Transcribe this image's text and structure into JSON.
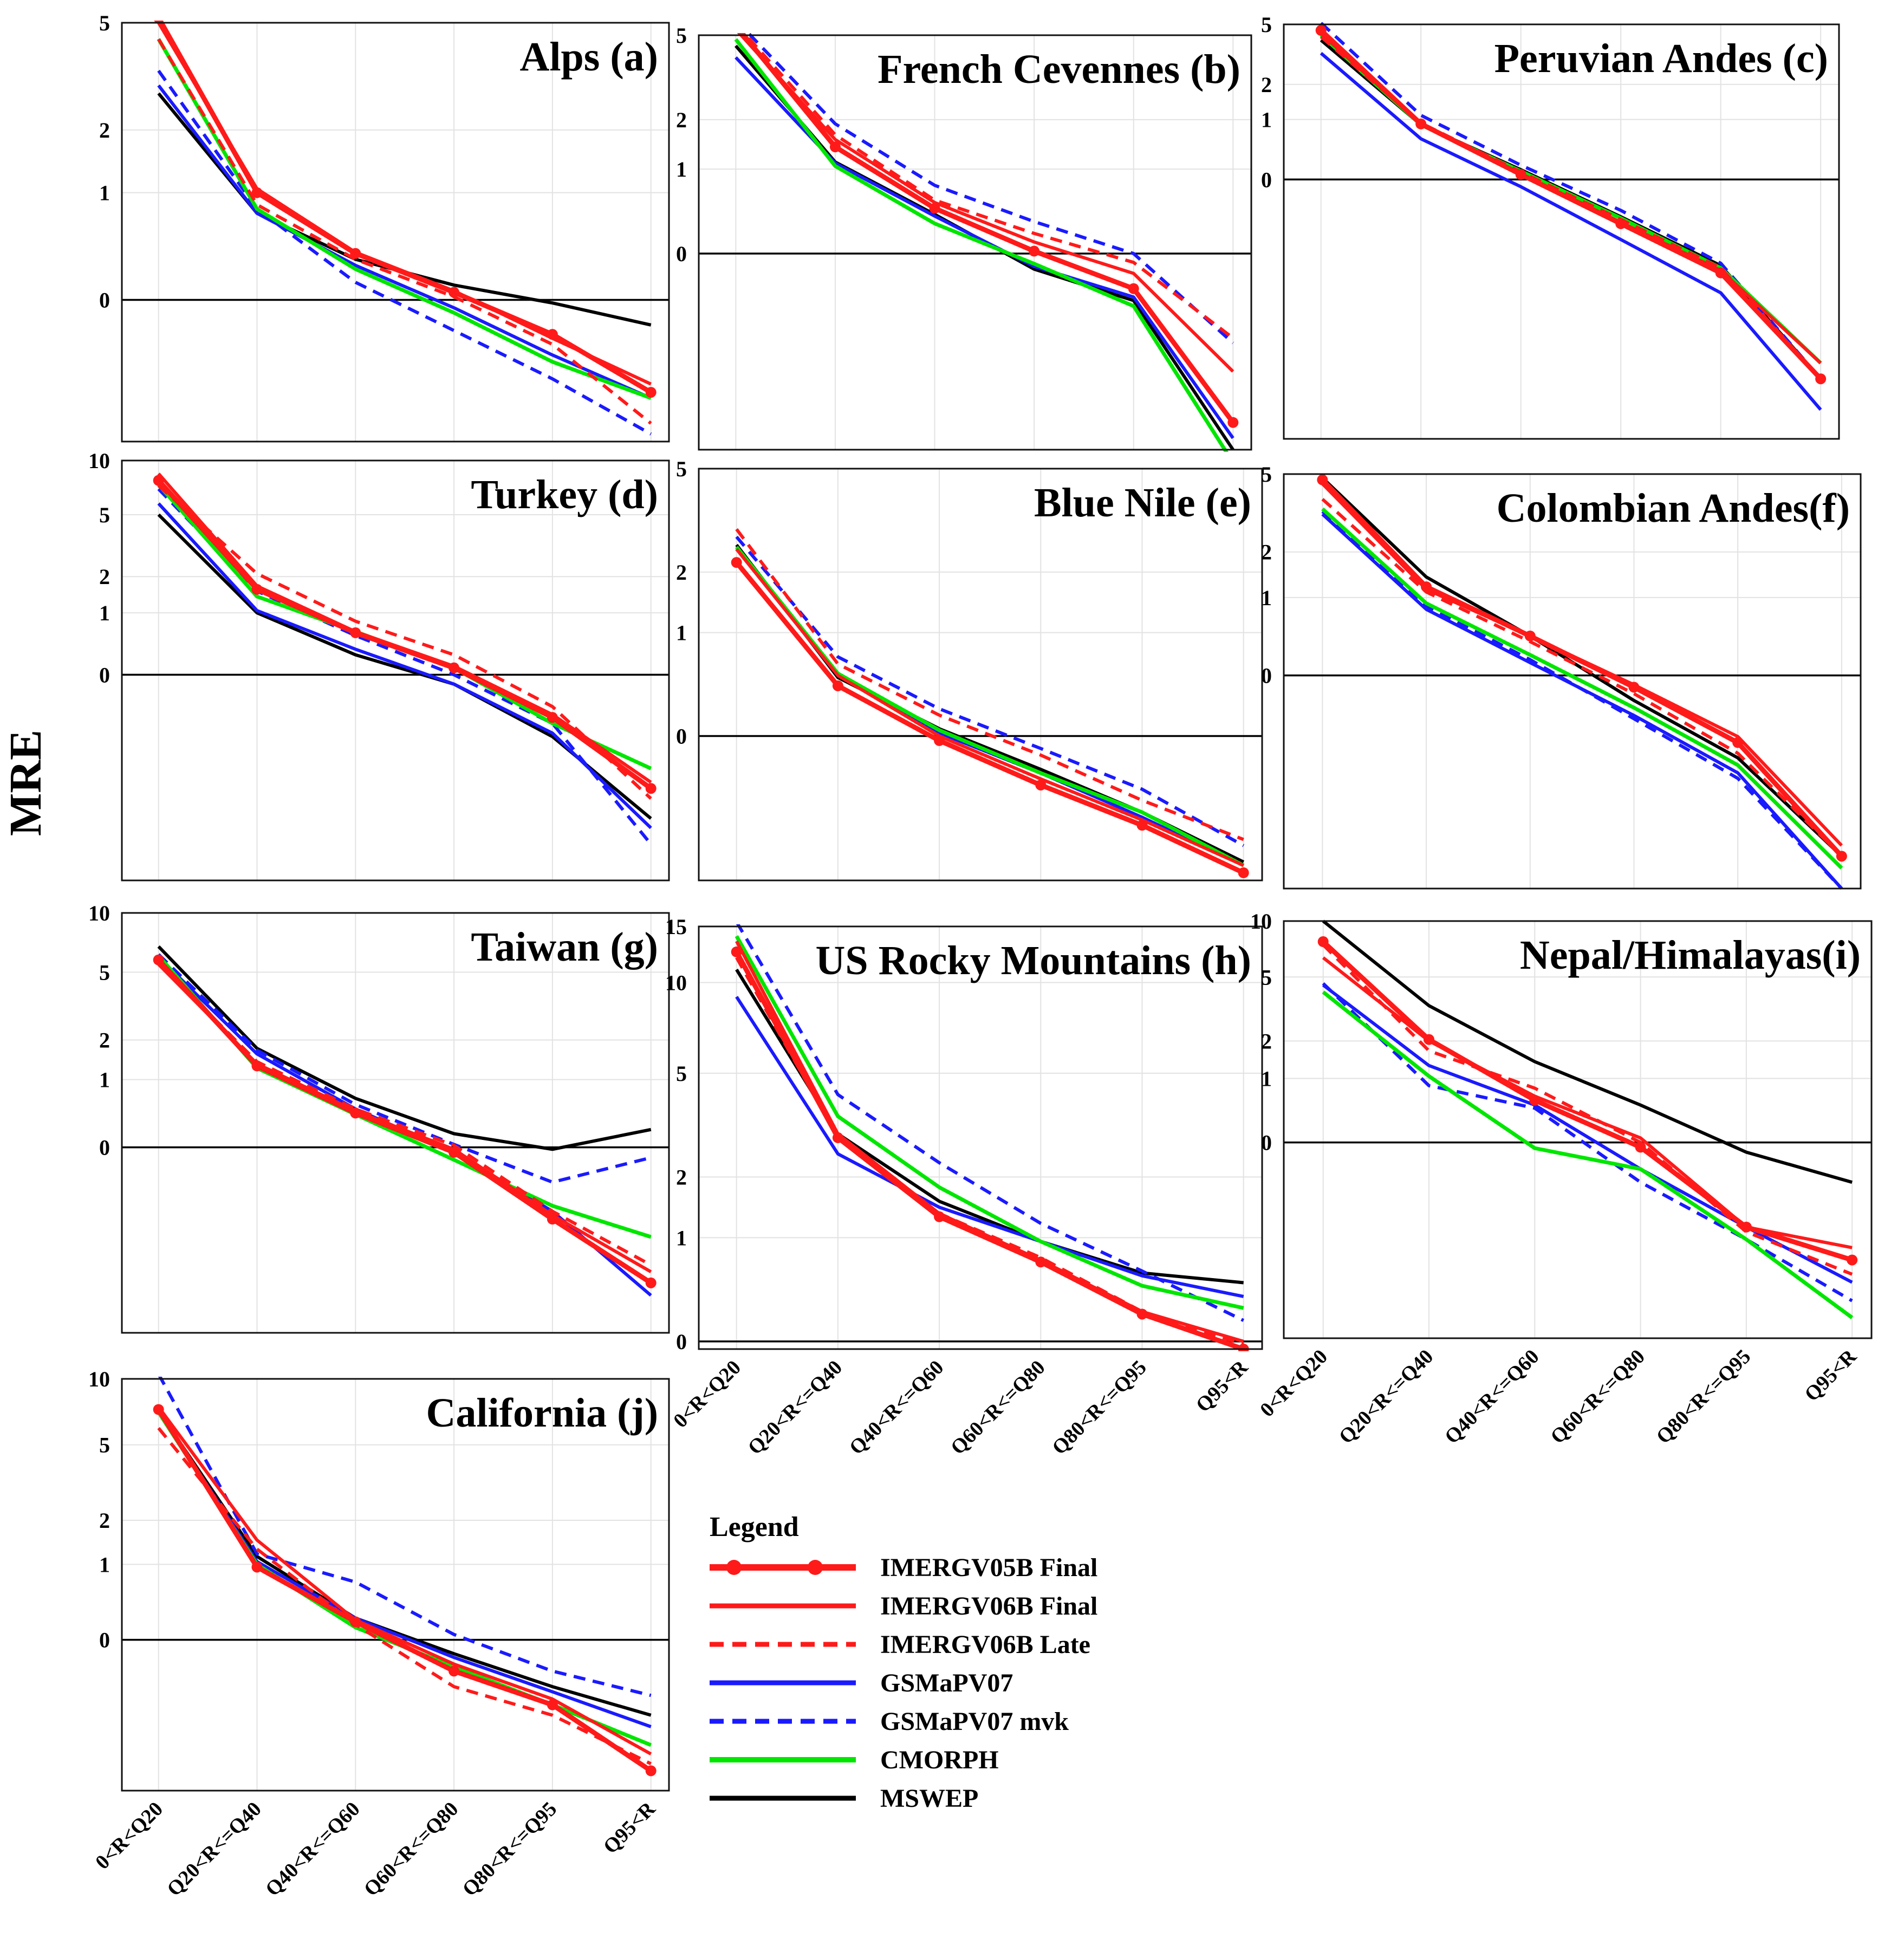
{
  "figure": {
    "ylabel": "MRE",
    "categories": [
      "0<R<Q20",
      "Q20<R<=Q40",
      "Q40<R<=Q60",
      "Q60<R<=Q80",
      "Q80<R<=Q95",
      "Q95<R"
    ]
  },
  "legend": {
    "title": "Legend",
    "items": [
      {
        "name": "IMERGV05B Final",
        "color": "#ff1a1a",
        "dash": "solid",
        "marker": true,
        "width": 9
      },
      {
        "name": "IMERGV06B Final",
        "color": "#ff1a1a",
        "dash": "solid",
        "marker": false,
        "width": 6
      },
      {
        "name": "IMERGV06B Late",
        "color": "#ff1a1a",
        "dash": "dashed",
        "marker": false,
        "width": 6
      },
      {
        "name": "GSMaPV07",
        "color": "#1a1aff",
        "dash": "solid",
        "marker": false,
        "width": 6
      },
      {
        "name": "GSMaPV07 mvk",
        "color": "#1a1aff",
        "dash": "dashed",
        "marker": false,
        "width": 6
      },
      {
        "name": "CMORPH",
        "color": "#00e600",
        "dash": "solid",
        "marker": false,
        "width": 7
      },
      {
        "name": "MSWEP",
        "color": "#000000",
        "dash": "solid",
        "marker": false,
        "width": 6
      }
    ]
  },
  "chart_data": [
    {
      "type": "line",
      "title": "Alps (a)",
      "categories": [
        "0<R<Q20",
        "Q20<R<=Q40",
        "Q40<R<=Q60",
        "Q60<R<=Q80",
        "Q80<R<=Q95",
        "Q95<R"
      ],
      "yticks": [
        5,
        2,
        1,
        0
      ],
      "yticklabels": [
        "5",
        "2",
        "1",
        "0"
      ],
      "ylim": [
        -0.6,
        5
      ],
      "series": [
        {
          "name": "IMERGV05B Final",
          "values": [
            5.2,
            1.0,
            0.35,
            0.05,
            -0.2,
            -0.45
          ]
        },
        {
          "name": "IMERGV06B Final",
          "values": [
            5.0,
            1.05,
            0.36,
            0.06,
            -0.22,
            -0.42
          ]
        },
        {
          "name": "IMERGV06B Late",
          "values": [
            4.4,
            0.85,
            0.3,
            0.02,
            -0.25,
            -0.55
          ]
        },
        {
          "name": "GSMaPV07",
          "values": [
            3.0,
            0.75,
            0.25,
            -0.05,
            -0.3,
            -0.47
          ]
        },
        {
          "name": "GSMaPV07 mvk",
          "values": [
            3.4,
            0.8,
            0.12,
            -0.18,
            -0.4,
            -0.58
          ]
        },
        {
          "name": "CMORPH",
          "values": [
            4.4,
            0.8,
            0.22,
            -0.08,
            -0.33,
            -0.47
          ]
        },
        {
          "name": "MSWEP",
          "values": [
            2.8,
            0.75,
            0.3,
            0.1,
            -0.02,
            -0.15
          ]
        }
      ]
    },
    {
      "type": "line",
      "title": "French Cevennes (b)",
      "categories": [
        "0<R<Q20",
        "Q20<R<=Q40",
        "Q40<R<=Q60",
        "Q60<R<=Q80",
        "Q80<R<=Q95",
        "Q95<R"
      ],
      "yticks": [
        5,
        2,
        1,
        0
      ],
      "yticklabels": [
        "5",
        "2",
        "1",
        "0"
      ],
      "ylim": [
        -0.8,
        5
      ],
      "series": [
        {
          "name": "IMERGV05B Final",
          "values": [
            5.5,
            1.4,
            0.45,
            0.02,
            -0.25,
            -0.75
          ]
        },
        {
          "name": "IMERGV06B Final",
          "values": [
            5.3,
            1.55,
            0.52,
            0.1,
            -0.15,
            -0.62
          ]
        },
        {
          "name": "IMERGV06B Late",
          "values": [
            5.6,
            1.65,
            0.55,
            0.18,
            -0.07,
            -0.5
          ]
        },
        {
          "name": "GSMaPV07",
          "values": [
            4.0,
            1.1,
            0.36,
            -0.1,
            -0.3,
            -0.78
          ]
        },
        {
          "name": "GSMaPV07 mvk",
          "values": [
            5.8,
            1.9,
            0.75,
            0.3,
            0.0,
            -0.52
          ]
        },
        {
          "name": "CMORPH",
          "values": [
            4.8,
            1.05,
            0.28,
            -0.08,
            -0.35,
            -0.82
          ]
        },
        {
          "name": "MSWEP",
          "values": [
            4.5,
            1.12,
            0.38,
            -0.12,
            -0.32,
            -0.8
          ]
        }
      ]
    },
    {
      "type": "line",
      "title": "Peruvian Andes  (c)",
      "categories": [
        "0<R<Q20",
        "Q20<R<=Q40",
        "Q40<R<=Q60",
        "Q60<R<=Q80",
        "Q80<R<=Q95",
        "Q95<R"
      ],
      "yticks": [
        5,
        2,
        1,
        0
      ],
      "yticklabels": [
        "5",
        "2",
        "1",
        "0"
      ],
      "ylim": [
        -0.95,
        5
      ],
      "series": [
        {
          "name": "IMERGV05B Final",
          "values": [
            4.6,
            0.9,
            0.06,
            -0.4,
            -0.66,
            -0.9
          ]
        },
        {
          "name": "IMERGV06B Final",
          "values": [
            4.4,
            0.9,
            0.07,
            -0.39,
            -0.65,
            -0.88
          ]
        },
        {
          "name": "IMERGV06B Late",
          "values": [
            4.2,
            0.92,
            0.09,
            -0.37,
            -0.64,
            -0.9
          ]
        },
        {
          "name": "GSMaPV07",
          "values": [
            3.3,
            0.6,
            -0.08,
            -0.5,
            -0.73,
            -0.93
          ]
        },
        {
          "name": "GSMaPV07 mvk",
          "values": [
            5.1,
            1.1,
            0.18,
            -0.3,
            -0.62,
            -0.9
          ]
        },
        {
          "name": "CMORPH",
          "values": [
            4.3,
            0.88,
            0.1,
            -0.36,
            -0.64,
            -0.88
          ]
        },
        {
          "name": "MSWEP",
          "values": [
            4.0,
            0.88,
            0.12,
            -0.35,
            -0.63,
            -0.9
          ]
        }
      ]
    },
    {
      "type": "line",
      "title": "Turkey (d)",
      "categories": [
        "0<R<Q20",
        "Q20<R<=Q40",
        "Q40<R<=Q60",
        "Q60<R<=Q80",
        "Q80<R<=Q95",
        "Q95<R"
      ],
      "yticks": [
        10,
        5,
        2,
        1,
        0
      ],
      "yticklabels": [
        "10",
        "5",
        "2",
        "1",
        "0"
      ],
      "ylim": [
        -0.9,
        10
      ],
      "series": [
        {
          "name": "IMERGV05B Final",
          "values": [
            7.8,
            1.6,
            0.6,
            0.08,
            -0.38,
            -0.72
          ]
        },
        {
          "name": "IMERGV06B Final",
          "values": [
            8.5,
            1.7,
            0.62,
            0.1,
            -0.36,
            -0.7
          ]
        },
        {
          "name": "IMERGV06B Late",
          "values": [
            7.3,
            2.1,
            0.82,
            0.25,
            -0.3,
            -0.75
          ]
        },
        {
          "name": "GSMaPV07",
          "values": [
            5.8,
            1.05,
            0.33,
            -0.1,
            -0.48,
            -0.82
          ]
        },
        {
          "name": "GSMaPV07 mvk",
          "values": [
            7.0,
            1.55,
            0.55,
            0.0,
            -0.42,
            -0.85
          ]
        },
        {
          "name": "CMORPH",
          "values": [
            7.4,
            1.4,
            0.62,
            0.08,
            -0.42,
            -0.65
          ]
        },
        {
          "name": "MSWEP",
          "values": [
            5.0,
            1.0,
            0.25,
            -0.1,
            -0.5,
            -0.8
          ]
        }
      ]
    },
    {
      "type": "line",
      "title": "Blue Nile (e)",
      "categories": [
        "0<R<Q20",
        "Q20<R<=Q40",
        "Q40<R<=Q60",
        "Q60<R<=Q80",
        "Q80<R<=Q95",
        "Q95<R"
      ],
      "yticks": [
        5,
        2,
        1,
        0
      ],
      "yticklabels": [
        "5",
        "2",
        "1",
        "0"
      ],
      "ylim": [
        -0.62,
        5
      ],
      "series": [
        {
          "name": "IMERGV05B Final",
          "values": [
            2.2,
            0.4,
            -0.03,
            -0.28,
            -0.45,
            -0.6
          ]
        },
        {
          "name": "IMERGV06B Final",
          "values": [
            2.5,
            0.5,
            0.0,
            -0.25,
            -0.43,
            -0.58
          ]
        },
        {
          "name": "IMERGV06B Late",
          "values": [
            3.0,
            0.62,
            0.15,
            -0.12,
            -0.35,
            -0.5
          ]
        },
        {
          "name": "GSMaPV07",
          "values": [
            2.5,
            0.5,
            0.02,
            -0.22,
            -0.42,
            -0.58
          ]
        },
        {
          "name": "GSMaPV07 mvk",
          "values": [
            2.8,
            0.7,
            0.2,
            -0.08,
            -0.3,
            -0.52
          ]
        },
        {
          "name": "CMORPH",
          "values": [
            2.55,
            0.52,
            0.04,
            -0.22,
            -0.4,
            -0.58
          ]
        },
        {
          "name": "MSWEP",
          "values": [
            2.6,
            0.48,
            0.05,
            -0.2,
            -0.4,
            -0.57
          ]
        }
      ]
    },
    {
      "type": "line",
      "title": "Colombian Andes(f)",
      "categories": [
        "0<R<Q20",
        "Q20<R<=Q40",
        "Q40<R<=Q60",
        "Q60<R<=Q80",
        "Q80<R<=Q95",
        "Q95<R"
      ],
      "yticks": [
        5,
        2,
        1,
        0
      ],
      "yticklabels": [
        "5",
        "2",
        "1",
        "0"
      ],
      "ylim": [
        -0.85,
        5
      ],
      "series": [
        {
          "name": "IMERGV05B Final",
          "values": [
            4.7,
            1.2,
            0.42,
            -0.1,
            -0.45,
            -0.8
          ]
        },
        {
          "name": "IMERGV06B Final",
          "values": [
            4.5,
            1.15,
            0.42,
            -0.08,
            -0.42,
            -0.78
          ]
        },
        {
          "name": "IMERGV06B Late",
          "values": [
            3.8,
            1.1,
            0.35,
            -0.15,
            -0.5,
            -0.8
          ]
        },
        {
          "name": "GSMaPV07",
          "values": [
            3.2,
            0.8,
            0.12,
            -0.3,
            -0.58,
            -0.85
          ]
        },
        {
          "name": "GSMaPV07 mvk",
          "values": [
            3.3,
            0.85,
            0.15,
            -0.32,
            -0.6,
            -0.85
          ]
        },
        {
          "name": "CMORPH",
          "values": [
            3.4,
            0.9,
            0.2,
            -0.25,
            -0.55,
            -0.82
          ]
        },
        {
          "name": "MSWEP",
          "values": [
            4.8,
            1.4,
            0.42,
            -0.2,
            -0.52,
            -0.8
          ]
        }
      ]
    },
    {
      "type": "line",
      "title": "Taiwan (g)",
      "categories": [
        "0<R<Q20",
        "Q20<R<=Q40",
        "Q40<R<=Q60",
        "Q60<R<=Q80",
        "Q80<R<=Q95",
        "Q95<R"
      ],
      "yticks": [
        10,
        5,
        2,
        1,
        0
      ],
      "yticklabels": [
        "10",
        "5",
        "2",
        "1",
        "0"
      ],
      "ylim": [
        -0.85,
        10
      ],
      "series": [
        {
          "name": "IMERGV05B Final",
          "values": [
            5.8,
            1.3,
            0.42,
            -0.05,
            -0.52,
            -0.75
          ]
        },
        {
          "name": "IMERGV06B Final",
          "values": [
            5.5,
            1.35,
            0.45,
            -0.02,
            -0.5,
            -0.72
          ]
        },
        {
          "name": "IMERGV06B Late",
          "values": [
            5.6,
            1.4,
            0.48,
            0.02,
            -0.48,
            -0.7
          ]
        },
        {
          "name": "GSMaPV07",
          "values": [
            6.0,
            1.6,
            0.48,
            -0.05,
            -0.48,
            -0.78
          ]
        },
        {
          "name": "GSMaPV07 mvk",
          "values": [
            6.2,
            1.7,
            0.55,
            0.03,
            -0.3,
            -0.1
          ]
        },
        {
          "name": "CMORPH",
          "values": [
            6.1,
            1.25,
            0.4,
            -0.12,
            -0.45,
            -0.6
          ]
        },
        {
          "name": "MSWEP",
          "values": [
            6.8,
            1.75,
            0.65,
            0.15,
            -0.02,
            0.2
          ]
        }
      ]
    },
    {
      "type": "line",
      "title": "US Rocky Mountains (h)",
      "categories": [
        "0<R<Q20",
        "Q20<R<=Q40",
        "Q40<R<=Q60",
        "Q60<R<=Q80",
        "Q80<R<=Q95",
        "Q95<R"
      ],
      "yticks": [
        15,
        10,
        5,
        2,
        1,
        0
      ],
      "yticklabels": [
        "15",
        "10",
        "5",
        "2",
        "1",
        "0"
      ],
      "ylim": [
        -0.05,
        15
      ],
      "series": [
        {
          "name": "IMERGV05B Final",
          "values": [
            12.5,
            2.9,
            1.3,
            0.7,
            0.2,
            -0.05
          ]
        },
        {
          "name": "IMERGV06B Final",
          "values": [
            13.5,
            3.0,
            1.35,
            0.72,
            0.22,
            0.0
          ]
        },
        {
          "name": "IMERGV06B Late",
          "values": [
            12.0,
            2.9,
            1.35,
            0.75,
            0.22,
            -0.02
          ]
        },
        {
          "name": "GSMaPV07",
          "values": [
            9.0,
            2.5,
            1.45,
            0.95,
            0.55,
            0.35
          ]
        },
        {
          "name": "GSMaPV07 mvk",
          "values": [
            15.5,
            4.2,
            2.3,
            1.2,
            0.6,
            0.15
          ]
        },
        {
          "name": "CMORPH",
          "values": [
            14.0,
            3.5,
            1.8,
            0.95,
            0.45,
            0.25
          ]
        },
        {
          "name": "MSWEP",
          "values": [
            11.0,
            3.0,
            1.55,
            0.95,
            0.58,
            0.48
          ]
        }
      ]
    },
    {
      "type": "line",
      "title": "Nepal/Himalayas(i)",
      "categories": [
        "0<R<Q20",
        "Q20<R<=Q40",
        "Q40<R<=Q60",
        "Q60<R<=Q80",
        "Q80<R<=Q95",
        "Q95<R"
      ],
      "yticks": [
        10,
        5,
        2,
        1,
        0
      ],
      "yticklabels": [
        "10",
        "5",
        "2",
        "1",
        "0"
      ],
      "ylim": [
        -0.88,
        10
      ],
      "series": [
        {
          "name": "IMERGV05B Final",
          "values": [
            7.8,
            2.05,
            0.58,
            -0.05,
            -0.6,
            -0.72
          ]
        },
        {
          "name": "IMERGV06B Final",
          "values": [
            6.4,
            2.0,
            0.65,
            0.05,
            -0.6,
            -0.68
          ]
        },
        {
          "name": "IMERGV06B Late",
          "values": [
            7.5,
            1.7,
            0.8,
            0.0,
            -0.62,
            -0.76
          ]
        },
        {
          "name": "GSMaPV07",
          "values": [
            4.5,
            1.3,
            0.5,
            -0.25,
            -0.6,
            -0.78
          ]
        },
        {
          "name": "GSMaPV07 mvk",
          "values": [
            4.6,
            0.85,
            0.45,
            -0.35,
            -0.65,
            -0.82
          ]
        },
        {
          "name": "CMORPH",
          "values": [
            4.1,
            1.05,
            -0.06,
            -0.25,
            -0.65,
            -0.85
          ]
        },
        {
          "name": "MSWEP",
          "values": [
            10.0,
            3.4,
            1.4,
            0.5,
            -0.1,
            -0.35
          ]
        }
      ]
    },
    {
      "type": "line",
      "title": "California (j)",
      "categories": [
        "0<R<Q20",
        "Q20<R<=Q40",
        "Q40<R<=Q60",
        "Q60<R<=Q80",
        "Q80<R<=Q95",
        "Q95<R"
      ],
      "yticks": [
        10,
        5,
        2,
        1,
        0
      ],
      "yticklabels": [
        "10",
        "5",
        "2",
        "1",
        "0"
      ],
      "ylim": [
        -0.75,
        10
      ],
      "series": [
        {
          "name": "IMERGV05B Final",
          "values": [
            7.3,
            0.95,
            0.18,
            -0.25,
            -0.45,
            -0.7
          ]
        },
        {
          "name": "IMERGV06B Final",
          "values": [
            7.5,
            1.5,
            0.2,
            -0.2,
            -0.42,
            -0.65
          ]
        },
        {
          "name": "IMERGV06B Late",
          "values": [
            6.0,
            1.3,
            0.15,
            -0.35,
            -0.5,
            -0.68
          ]
        },
        {
          "name": "GSMaPV07",
          "values": [
            7.2,
            1.05,
            0.22,
            -0.15,
            -0.38,
            -0.55
          ]
        },
        {
          "name": "GSMaPV07 mvk",
          "values": [
            10.5,
            1.2,
            0.7,
            0.05,
            -0.25,
            -0.4
          ]
        },
        {
          "name": "CMORPH",
          "values": [
            7.1,
            1.0,
            0.12,
            -0.22,
            -0.45,
            -0.62
          ]
        },
        {
          "name": "MSWEP",
          "values": [
            7.2,
            1.15,
            0.22,
            -0.12,
            -0.35,
            -0.5
          ]
        }
      ]
    }
  ]
}
